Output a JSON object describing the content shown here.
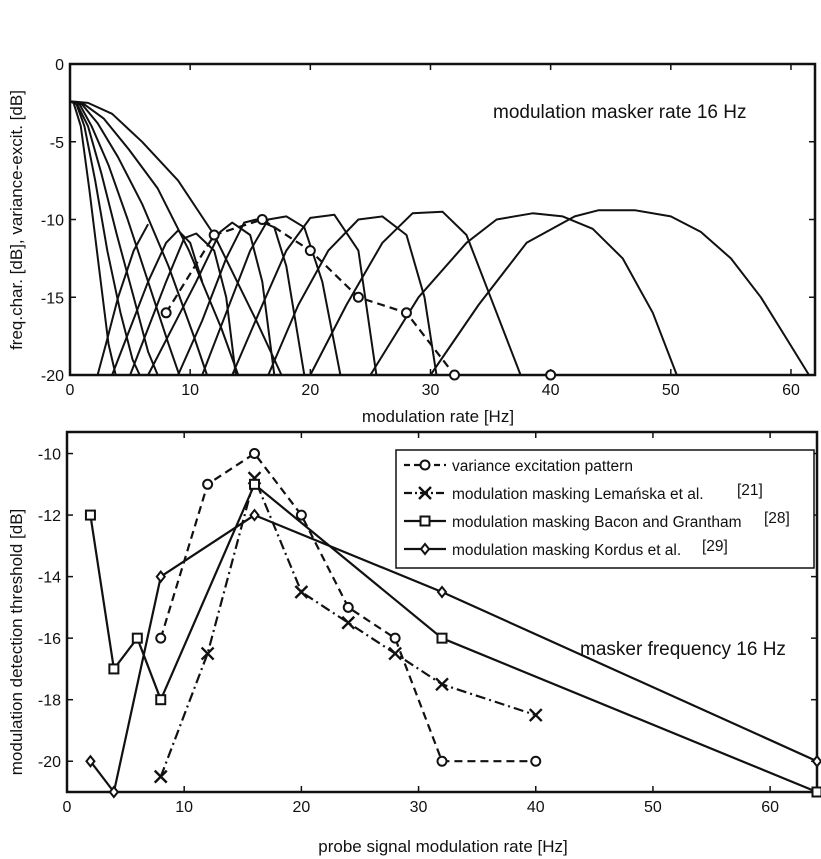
{
  "chart_data": [
    {
      "type": "line",
      "title": "",
      "xlabel": "modulation rate [Hz]",
      "ylabel": "freq.char. [dB], variance-excit. [dB]",
      "annotation": "modulation masker rate 16 Hz",
      "xlim": [
        0,
        62
      ],
      "ylim": [
        -20,
        0
      ],
      "xticks": [
        0,
        10,
        20,
        30,
        40,
        50,
        60
      ],
      "yticks": [
        0,
        -5,
        -10,
        -15,
        -20
      ],
      "grid": false,
      "curves": [
        {
          "x": [
            0,
            0.3,
            0.9,
            1.6,
            2.4,
            3.2,
            3.8
          ],
          "y": [
            -2.4,
            -2.5,
            -4,
            -8,
            -13,
            -18,
            -20
          ]
        },
        {
          "x": [
            0,
            0.5,
            1.2,
            2.1,
            3.1,
            4.2,
            5.2,
            5.8
          ],
          "y": [
            -2.4,
            -2.5,
            -4,
            -7.5,
            -12,
            -16,
            -19,
            -20
          ]
        },
        {
          "x": [
            0,
            0.6,
            1.5,
            2.6,
            3.9,
            5.3,
            6.5,
            7.3
          ],
          "y": [
            -2.4,
            -2.6,
            -4,
            -7,
            -11,
            -15,
            -18.5,
            -20
          ]
        },
        {
          "x": [
            0,
            0.8,
            1.8,
            3.2,
            4.8,
            6.5,
            8.2,
            9.1
          ],
          "y": [
            -2.4,
            -2.6,
            -4,
            -6.5,
            -10,
            -14,
            -18,
            -20
          ]
        },
        {
          "x": [
            0,
            1,
            2.3,
            4,
            6,
            8.2,
            10.3,
            11.4
          ],
          "y": [
            -2.4,
            -2.6,
            -3.8,
            -6,
            -9,
            -13,
            -17.5,
            -20
          ]
        },
        {
          "x": [
            0,
            1.2,
            2.8,
            4.9,
            7.3,
            9.9,
            12.6,
            14
          ],
          "y": [
            -2.4,
            -2.6,
            -3.5,
            -5.5,
            -8,
            -12,
            -17,
            -20
          ]
        },
        {
          "x": [
            0,
            1.5,
            3.5,
            6,
            9,
            12,
            15.5,
            17.6
          ],
          "y": [
            -2.4,
            -2.5,
            -3.2,
            -5,
            -7.5,
            -11,
            -16.5,
            -20
          ]
        },
        {
          "x": [
            2.3,
            3,
            4,
            5.3,
            6.5
          ],
          "y": [
            -20,
            -18,
            -15,
            -12,
            -10.3
          ]
        },
        {
          "x": [
            3.5,
            5,
            6.5,
            8,
            9,
            10,
            11
          ],
          "y": [
            -20,
            -17,
            -14,
            -11.5,
            -10.7,
            -11.5,
            -14
          ]
        },
        {
          "x": [
            5,
            6.5,
            8,
            9.5,
            10.5,
            12,
            13,
            13.8
          ],
          "y": [
            -20,
            -17,
            -14,
            -11.2,
            -10.9,
            -12,
            -15,
            -20
          ]
        },
        {
          "x": [
            6.5,
            8.5,
            10.5,
            12.5,
            13.5,
            15,
            16,
            17
          ],
          "y": [
            -20,
            -17,
            -14,
            -10.8,
            -10.2,
            -11,
            -14,
            -20
          ]
        },
        {
          "x": [
            9,
            11,
            13,
            14.5,
            15.5,
            17,
            18,
            19.5
          ],
          "y": [
            -20,
            -16.5,
            -12.5,
            -10.2,
            -10,
            -10.5,
            -13,
            -20
          ]
        },
        {
          "x": [
            11,
            13,
            15,
            16.5,
            18,
            19.5,
            21,
            22.5
          ],
          "y": [
            -20,
            -16,
            -12,
            -10,
            -9.8,
            -10.5,
            -14,
            -20
          ]
        },
        {
          "x": [
            13.5,
            16,
            18,
            20,
            22,
            24,
            25.5
          ],
          "y": [
            -20,
            -15.5,
            -12,
            -9.9,
            -9.7,
            -12,
            -20
          ]
        },
        {
          "x": [
            16.5,
            19,
            21.5,
            24,
            26,
            28,
            29.5,
            30.5
          ],
          "y": [
            -20,
            -15.5,
            -12,
            -10,
            -9.8,
            -11,
            -15,
            -20
          ]
        },
        {
          "x": [
            20,
            23,
            26,
            28.5,
            31,
            33,
            35,
            37.5
          ],
          "y": [
            -20,
            -15.5,
            -11.5,
            -9.6,
            -9.5,
            -11,
            -15,
            -20
          ]
        },
        {
          "x": [
            25,
            29,
            33,
            35.5,
            38.5,
            41,
            43.5,
            46,
            48.5,
            50.5
          ],
          "y": [
            -20,
            -15,
            -11.5,
            -10,
            -9.6,
            -9.8,
            -10.6,
            -12.5,
            -16,
            -20
          ]
        },
        {
          "x": [
            30,
            34,
            38,
            42,
            44,
            47,
            50,
            52.5,
            55,
            57.5,
            59.5,
            61.5
          ],
          "y": [
            -20,
            -15.5,
            -11.5,
            -9.8,
            -9.4,
            -9.4,
            -9.8,
            -10.8,
            -12.5,
            -15,
            -17.5,
            -20
          ]
        }
      ],
      "series": [
        {
          "x": [
            8,
            12,
            16,
            20,
            24,
            28,
            32
          ],
          "y": [
            -16,
            -11,
            -10,
            -12,
            -15,
            -16,
            -20
          ],
          "style": "dashed",
          "marker": "circle"
        },
        {
          "x": [
            40
          ],
          "y": [
            -20
          ],
          "style": "none",
          "marker": "circle"
        }
      ]
    },
    {
      "type": "line",
      "title": "",
      "xlabel": "probe signal modulation rate [Hz]",
      "ylabel": "modulation detection threshold [dB]",
      "annotation": "masker frequency 16 Hz",
      "xlim": [
        0,
        64
      ],
      "ylim": [
        -21,
        -9.3
      ],
      "xticks": [
        0,
        10,
        20,
        30,
        40,
        50,
        60
      ],
      "yticks": [
        -10,
        -12,
        -14,
        -16,
        -18,
        -20
      ],
      "grid": false,
      "legend_position": "top-right",
      "series": [
        {
          "name": "variance excitation pattern",
          "ref": "",
          "style": "dashed",
          "marker": "circle",
          "x": [
            8,
            12,
            16,
            20,
            24,
            28,
            32,
            40
          ],
          "y": [
            -16,
            -11,
            -10,
            -12,
            -15,
            -16,
            -20,
            -20
          ]
        },
        {
          "name": "modulation masking Lemańska et al.",
          "ref": "[21]",
          "style": "dashdot",
          "marker": "x",
          "x": [
            8,
            12,
            16,
            20,
            24,
            28,
            32,
            40
          ],
          "y": [
            -20.5,
            -16.5,
            -10.8,
            -14.5,
            -15.5,
            -16.5,
            -17.5,
            -18.5
          ]
        },
        {
          "name": "modulation masking Bacon and Grantham",
          "ref": "[28]",
          "style": "solid",
          "marker": "square",
          "x": [
            2,
            4,
            6,
            8,
            16,
            32,
            64
          ],
          "y": [
            -12,
            -17,
            -16,
            -18,
            -11,
            -16,
            -21
          ]
        },
        {
          "name": "modulation masking Kordus et al.",
          "ref": "[29]",
          "style": "solid",
          "marker": "diamond",
          "x": [
            2,
            4,
            8,
            16,
            32,
            64
          ],
          "y": [
            -20,
            -21,
            -14,
            -12,
            -14.5,
            -20
          ]
        }
      ]
    }
  ]
}
